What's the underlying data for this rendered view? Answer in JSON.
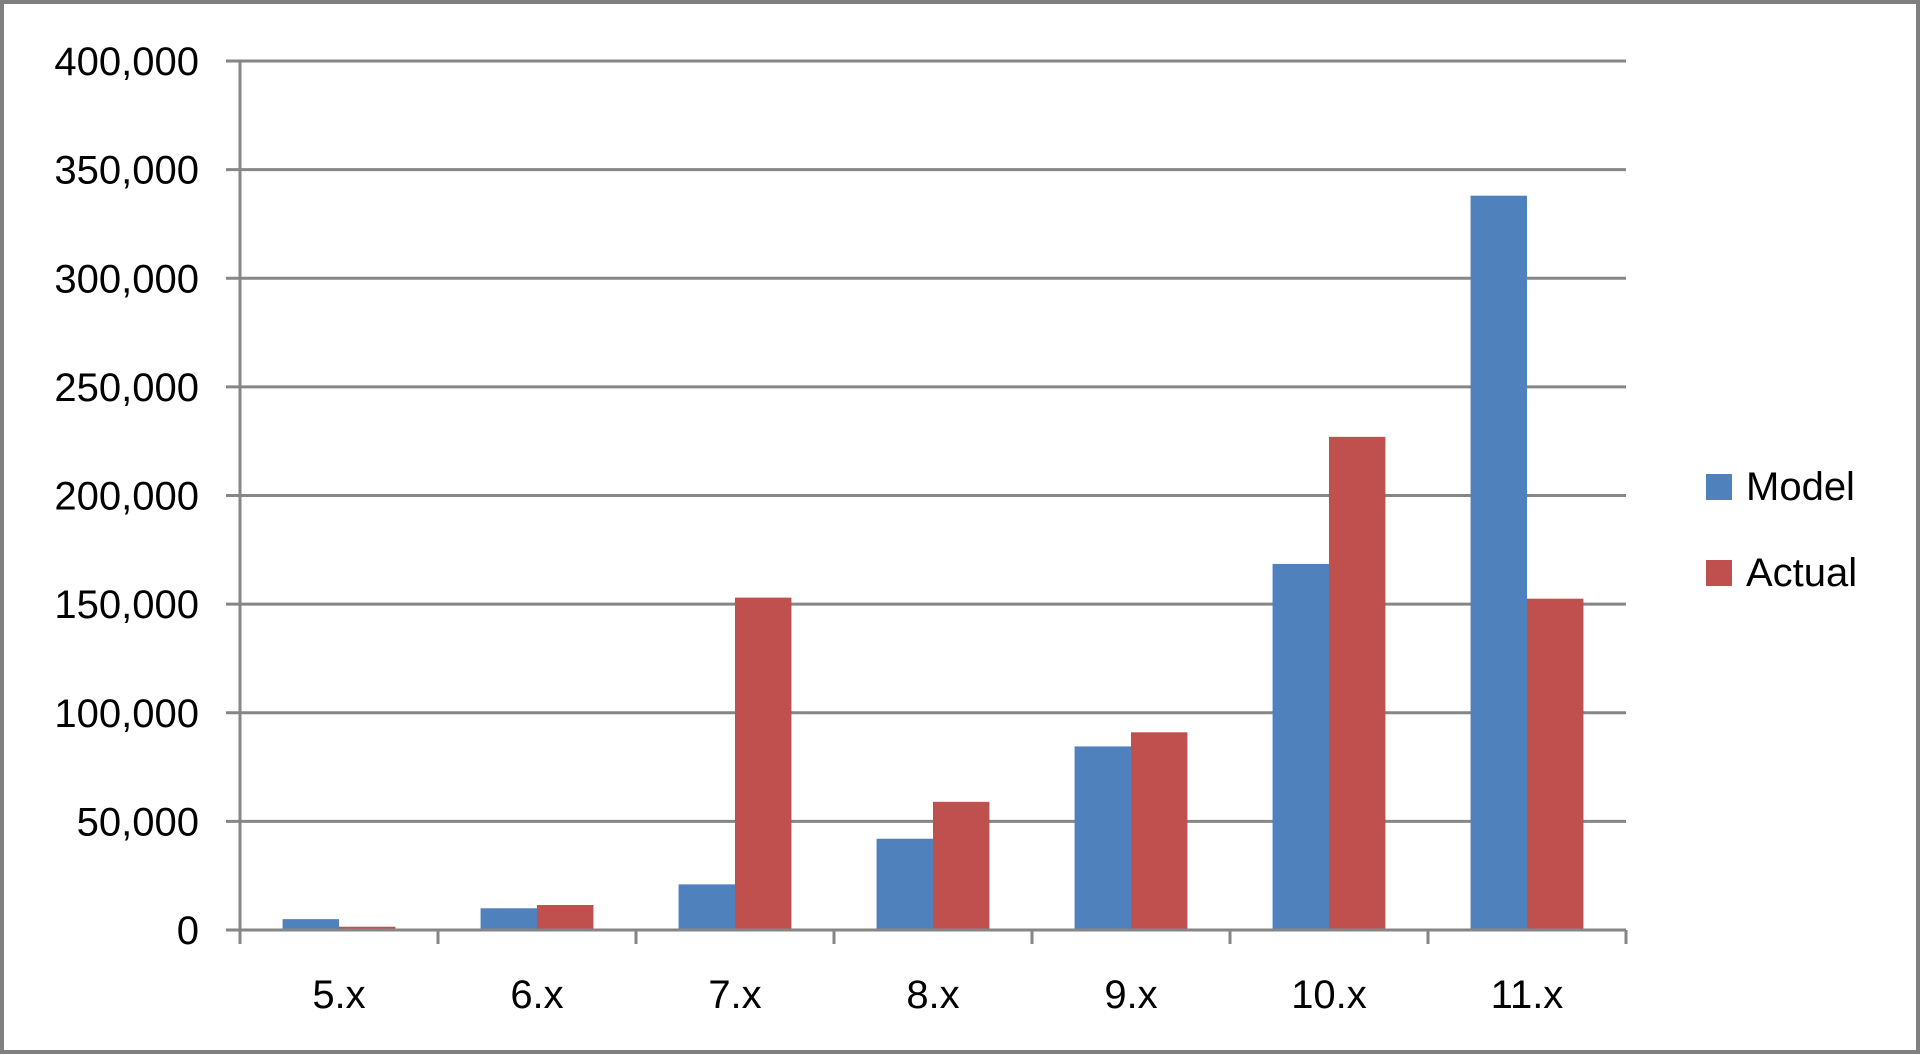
{
  "chart_data": {
    "type": "bar",
    "title": "",
    "xlabel": "",
    "ylabel": "",
    "categories": [
      "5.x",
      "6.x",
      "7.x",
      "8.x",
      "9.x",
      "10.x",
      "11.x"
    ],
    "series": [
      {
        "name": "Model",
        "color": "#4f81bd",
        "values": [
          5000,
          10000,
          21000,
          42000,
          84500,
          168500,
          338000
        ]
      },
      {
        "name": "Actual",
        "color": "#c0504d",
        "values": [
          1500,
          11500,
          153000,
          59000,
          91000,
          227000,
          152500
        ]
      }
    ],
    "ylim": [
      0,
      400000
    ],
    "yticks": [
      "0",
      "50,000",
      "100,000",
      "150,000",
      "200,000",
      "250,000",
      "300,000",
      "350,000",
      "400,000"
    ],
    "grid": true,
    "legend_position": "right"
  }
}
